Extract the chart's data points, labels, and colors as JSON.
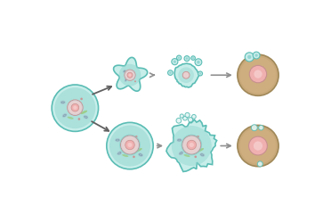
{
  "bg_color": "#ffffff",
  "teal_outer": "#a8ddd8",
  "teal_fill": "#c8eeea",
  "teal_border": "#5bbdb5",
  "teal_inner": "#90d4ce",
  "nucleus_fill": "#e8d0d0",
  "nucleus_pink": "#f0b0b0",
  "nucleus_inner": "#f5c8c8",
  "nucleus_border": "#c89090",
  "organelle_dark": "#7a9aaa",
  "organelle_light": "#b0ccd8",
  "brown_fill": "#c8a878",
  "brown_light": "#d8b888",
  "brown_border": "#a08858",
  "bubble_fill": "#c8ecea",
  "bubble_border": "#5bbdb5",
  "bubble_center": "#7dccc8",
  "necrosis_bubble_fill": "#e0f5f3",
  "arrow_color": "#909090",
  "diag_arrow_color": "#606060",
  "green_org": "#98c870",
  "dot_color": "#d08888",
  "small_org_fill": "#8899bb",
  "small_org_border": "#aabbd0"
}
